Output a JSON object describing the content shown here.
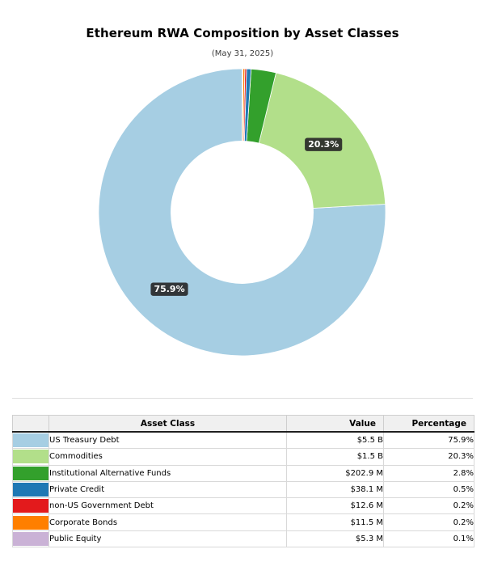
{
  "header": {
    "title": "Ethereum RWA Composition by Asset Classes",
    "subtitle": "(May 31, 2025)"
  },
  "chart_data": {
    "type": "pie",
    "subtype": "donut",
    "title": "Ethereum RWA Composition by Asset Classes",
    "subtitle": "(May 31, 2025)",
    "start_angle": 90,
    "direction": "counterclockwise",
    "hole_ratio": 0.496,
    "pct_label_min": 5,
    "pct_label_color": "#ffffff",
    "pct_label_bg": "#262626",
    "wedge_edge_color": "#ffffff",
    "series": [
      {
        "label": "US Treasury Debt",
        "value_text": "$5.5 B",
        "pct": 75.9,
        "pct_text": "75.9%",
        "color": "#a6cee3"
      },
      {
        "label": "Commodities",
        "value_text": "$1.5 B",
        "pct": 20.3,
        "pct_text": "20.3%",
        "color": "#b2df8a"
      },
      {
        "label": "Institutional Alternative Funds",
        "value_text": "$202.9 M",
        "pct": 2.8,
        "pct_text": "2.8%",
        "color": "#33a02c"
      },
      {
        "label": "Private Credit",
        "value_text": "$38.1 M",
        "pct": 0.5,
        "pct_text": "0.5%",
        "color": "#1f78b4"
      },
      {
        "label": "non-US Government Debt",
        "value_text": "$12.6 M",
        "pct": 0.2,
        "pct_text": "0.2%",
        "color": "#e31a1c"
      },
      {
        "label": "Corporate Bonds",
        "value_text": "$11.5 M",
        "pct": 0.2,
        "pct_text": "0.2%",
        "color": "#ff7f00"
      },
      {
        "label": "Public Equity",
        "value_text": "$5.3 M",
        "pct": 0.1,
        "pct_text": "0.1%",
        "color": "#cab2d6"
      }
    ]
  },
  "table": {
    "headers": {
      "swatch": "",
      "asset_class": "Asset Class",
      "value": "Value",
      "percentage": "Percentage"
    }
  }
}
